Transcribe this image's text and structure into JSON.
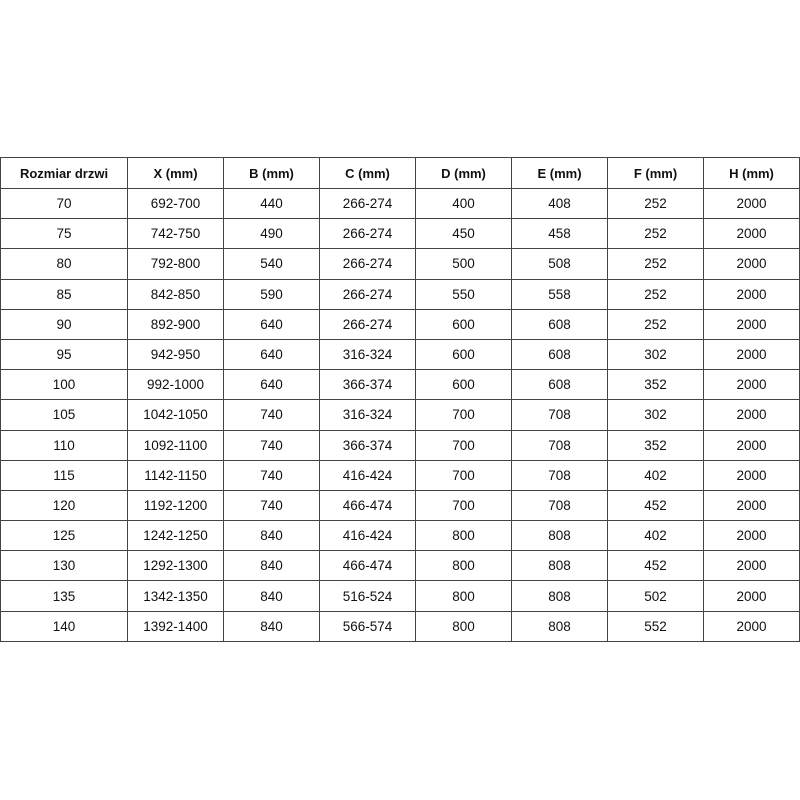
{
  "table": {
    "headers": [
      "Rozmiar drzwi",
      "X (mm)",
      "B (mm)",
      "C (mm)",
      "D (mm)",
      "E (mm)",
      "F (mm)",
      "H (mm)"
    ],
    "rows": [
      [
        "70",
        "692-700",
        "440",
        "266-274",
        "400",
        "408",
        "252",
        "2000"
      ],
      [
        "75",
        "742-750",
        "490",
        "266-274",
        "450",
        "458",
        "252",
        "2000"
      ],
      [
        "80",
        "792-800",
        "540",
        "266-274",
        "500",
        "508",
        "252",
        "2000"
      ],
      [
        "85",
        "842-850",
        "590",
        "266-274",
        "550",
        "558",
        "252",
        "2000"
      ],
      [
        "90",
        "892-900",
        "640",
        "266-274",
        "600",
        "608",
        "252",
        "2000"
      ],
      [
        "95",
        "942-950",
        "640",
        "316-324",
        "600",
        "608",
        "302",
        "2000"
      ],
      [
        "100",
        "992-1000",
        "640",
        "366-374",
        "600",
        "608",
        "352",
        "2000"
      ],
      [
        "105",
        "1042-1050",
        "740",
        "316-324",
        "700",
        "708",
        "302",
        "2000"
      ],
      [
        "110",
        "1092-1100",
        "740",
        "366-374",
        "700",
        "708",
        "352",
        "2000"
      ],
      [
        "115",
        "1142-1150",
        "740",
        "416-424",
        "700",
        "708",
        "402",
        "2000"
      ],
      [
        "120",
        "1192-1200",
        "740",
        "466-474",
        "700",
        "708",
        "452",
        "2000"
      ],
      [
        "125",
        "1242-1250",
        "840",
        "416-424",
        "800",
        "808",
        "402",
        "2000"
      ],
      [
        "130",
        "1292-1300",
        "840",
        "466-474",
        "800",
        "808",
        "452",
        "2000"
      ],
      [
        "135",
        "1342-1350",
        "840",
        "516-524",
        "800",
        "808",
        "502",
        "2000"
      ],
      [
        "140",
        "1392-1400",
        "840",
        "566-574",
        "800",
        "808",
        "552",
        "2000"
      ]
    ]
  }
}
